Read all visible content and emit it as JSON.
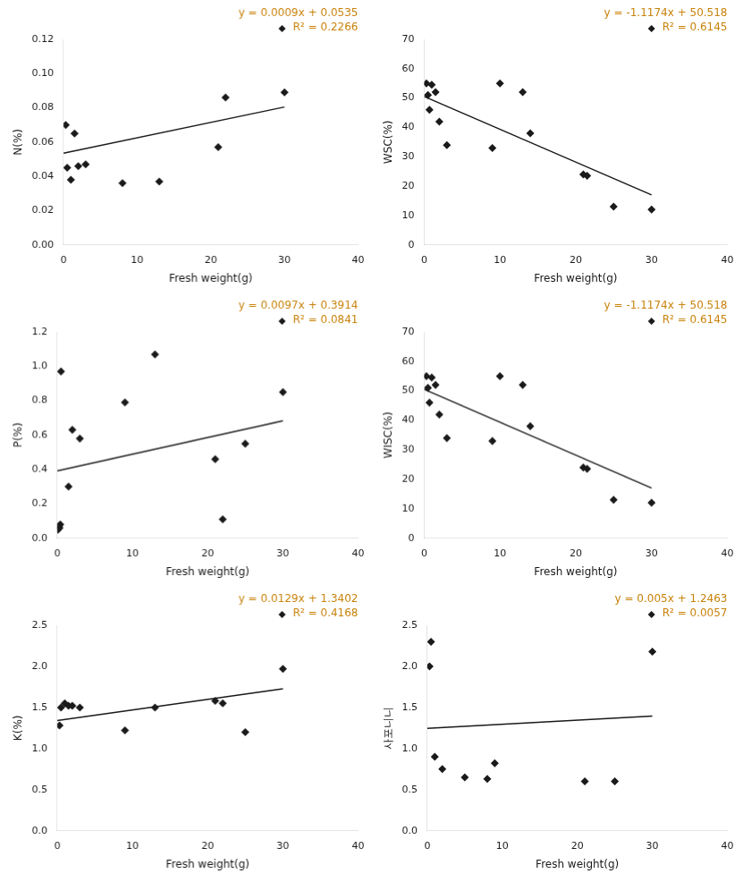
{
  "chart_data": [
    {
      "type": "scatter",
      "xlabel": "Fresh weight(g)",
      "ylabel": "N(%)",
      "xlim": [
        0,
        40
      ],
      "xticks": [
        0,
        10,
        20,
        30,
        40
      ],
      "ylim": [
        0,
        0.12
      ],
      "yticks": [
        {
          "value": 0,
          "label": "0.00"
        },
        {
          "value": 0.02,
          "label": "0.02"
        },
        {
          "value": 0.04,
          "label": "0.04"
        },
        {
          "value": 0.06,
          "label": "0.06"
        },
        {
          "value": 0.08,
          "label": "0.08"
        },
        {
          "value": 0.1,
          "label": "0.10"
        },
        {
          "value": 0.12,
          "label": "0.12"
        }
      ],
      "grid": false,
      "series": [
        {
          "type": "scatter",
          "color": "#1a1a1a",
          "marker": "diamond",
          "x": [
            0.3,
            0.5,
            1.0,
            1.5,
            2.0,
            3.0,
            8.0,
            13.0,
            21.0,
            22.0,
            30.0
          ],
          "values": [
            0.07,
            0.045,
            0.038,
            0.065,
            0.046,
            0.047,
            0.036,
            0.037,
            0.057,
            0.086,
            0.089
          ]
        },
        {
          "type": "line",
          "color": "#1a1a1a",
          "x": [
            0,
            30
          ],
          "values": [
            0.0535,
            0.0805
          ]
        }
      ],
      "annotations": [
        {
          "text": "y = 0.0009x + 0.0535",
          "color": "#C8820A"
        },
        {
          "text": "R² = 0.2266",
          "color": "#C8820A"
        }
      ]
    },
    {
      "type": "scatter",
      "xlabel": "Fresh weight(g)",
      "ylabel": "WSC(%)",
      "xlim": [
        0,
        40
      ],
      "xticks": [
        0,
        10,
        20,
        30,
        40
      ],
      "ylim": [
        0,
        70
      ],
      "yticks": [
        0,
        10,
        20,
        30,
        40,
        50,
        60,
        70
      ],
      "grid": false,
      "series": [
        {
          "type": "scatter",
          "color": "#1a1a1a",
          "marker": "diamond",
          "x": [
            0.3,
            0.5,
            0.7,
            1.0,
            1.5,
            2.0,
            3.0,
            9.0,
            10.0,
            13.0,
            14.0,
            21.0,
            21.5,
            25.0,
            30.0
          ],
          "values": [
            55.0,
            51.0,
            46.0,
            54.5,
            52.0,
            42.0,
            34.0,
            33.0,
            55.0,
            52.0,
            38.0,
            24.0,
            23.5,
            13.0,
            12.0
          ]
        },
        {
          "type": "line",
          "color": "#1a1a1a",
          "x": [
            0,
            30
          ],
          "values": [
            50.518,
            16.996
          ]
        }
      ],
      "annotations": [
        {
          "text": "y = -1.1174x + 50.518",
          "color": "#C8820A"
        },
        {
          "text": "R² = 0.6145",
          "color": "#C8820A"
        }
      ]
    },
    {
      "type": "scatter",
      "xlabel": "Fresh weight(g)",
      "ylabel": "P(%)",
      "xlim": [
        0,
        40
      ],
      "xticks": [
        0,
        10,
        20,
        30,
        40
      ],
      "ylim": [
        0,
        1.2
      ],
      "yticks": [
        {
          "value": 0,
          "label": "0.0"
        },
        {
          "value": 0.2,
          "label": "0.2"
        },
        {
          "value": 0.4,
          "label": "0.4"
        },
        {
          "value": 0.6,
          "label": "0.6"
        },
        {
          "value": 0.8,
          "label": "0.8"
        },
        {
          "value": 1.0,
          "label": "1.0"
        },
        {
          "value": 1.2,
          "label": "1.2"
        }
      ],
      "grid": false,
      "series": [
        {
          "type": "scatter",
          "color": "#1a1a1a",
          "marker": "diamond",
          "x": [
            0.1,
            0.2,
            0.3,
            0.4,
            0.5,
            1.5,
            2.0,
            3.0,
            9.0,
            13.0,
            21.0,
            22.0,
            25.0,
            30.0
          ],
          "values": [
            0.05,
            0.07,
            0.06,
            0.08,
            0.97,
            0.3,
            0.63,
            0.58,
            0.79,
            1.07,
            0.46,
            0.11,
            0.55,
            0.85
          ]
        },
        {
          "type": "line",
          "color": "#1a1a1a",
          "x": [
            0,
            30
          ],
          "values": [
            0.3914,
            0.6824
          ]
        }
      ],
      "annotations": [
        {
          "text": "y = 0.0097x + 0.3914",
          "color": "#C8820A"
        },
        {
          "text": "R² = 0.0841",
          "color": "#C8820A"
        }
      ]
    },
    {
      "type": "scatter",
      "xlabel": "Fresh weight(g)",
      "ylabel": "WISC(%)",
      "xlim": [
        0,
        40
      ],
      "xticks": [
        0,
        10,
        20,
        30,
        40
      ],
      "ylim": [
        0,
        70
      ],
      "yticks": [
        0,
        10,
        20,
        30,
        40,
        50,
        60,
        70
      ],
      "grid": false,
      "series": [
        {
          "type": "scatter",
          "color": "#1a1a1a",
          "marker": "diamond",
          "x": [
            0.3,
            0.5,
            0.7,
            1.0,
            1.5,
            2.0,
            3.0,
            9.0,
            10.0,
            13.0,
            14.0,
            21.0,
            21.5,
            25.0,
            30.0
          ],
          "values": [
            55.0,
            51.0,
            46.0,
            54.5,
            52.0,
            42.0,
            34.0,
            33.0,
            55.0,
            52.0,
            38.0,
            24.0,
            23.5,
            13.0,
            12.0
          ]
        },
        {
          "type": "line",
          "color": "#1a1a1a",
          "x": [
            0,
            30
          ],
          "values": [
            50.518,
            16.996
          ]
        }
      ],
      "annotations": [
        {
          "text": "y = -1.1174x + 50.518",
          "color": "#C8820A"
        },
        {
          "text": "R² = 0.6145",
          "color": "#C8820A"
        }
      ]
    },
    {
      "type": "scatter",
      "xlabel": "Fresh weight(g)",
      "ylabel": "K(%)",
      "xlim": [
        0,
        40
      ],
      "xticks": [
        0,
        10,
        20,
        30,
        40
      ],
      "ylim": [
        0,
        2.5
      ],
      "yticks": [
        {
          "value": 0,
          "label": "0.0"
        },
        {
          "value": 0.5,
          "label": "0.5"
        },
        {
          "value": 1.0,
          "label": "1.0"
        },
        {
          "value": 1.5,
          "label": "1.5"
        },
        {
          "value": 2.0,
          "label": "2.0"
        },
        {
          "value": 2.5,
          "label": "2.5"
        }
      ],
      "grid": false,
      "series": [
        {
          "type": "scatter",
          "color": "#1a1a1a",
          "marker": "diamond",
          "x": [
            0.3,
            0.5,
            1.0,
            1.5,
            2.0,
            3.0,
            9.0,
            13.0,
            21.0,
            22.0,
            25.0,
            30.0
          ],
          "values": [
            1.28,
            1.5,
            1.55,
            1.52,
            1.52,
            1.5,
            1.22,
            1.5,
            1.58,
            1.55,
            1.2,
            1.97
          ]
        },
        {
          "type": "line",
          "color": "#1a1a1a",
          "x": [
            0,
            30
          ],
          "values": [
            1.3402,
            1.7272
          ]
        }
      ],
      "annotations": [
        {
          "text": "y = 0.0129x + 1.3402",
          "color": "#C8820A"
        },
        {
          "text": "R² = 0.4168",
          "color": "#C8820A"
        }
      ]
    },
    {
      "type": "scatter",
      "xlabel": "Fresh weight(g)",
      "ylabel": "사포니니",
      "xlim": [
        0,
        40
      ],
      "xticks": [
        0,
        10,
        20,
        30,
        40
      ],
      "ylim": [
        0,
        2.5
      ],
      "yticks": [
        {
          "value": 0,
          "label": "0.0"
        },
        {
          "value": 0.5,
          "label": "0.5"
        },
        {
          "value": 1.0,
          "label": "1.0"
        },
        {
          "value": 1.5,
          "label": "1.5"
        },
        {
          "value": 2.0,
          "label": "2.0"
        },
        {
          "value": 2.5,
          "label": "2.5"
        }
      ],
      "grid": false,
      "series": [
        {
          "type": "scatter",
          "color": "#1a1a1a",
          "marker": "diamond",
          "x": [
            0.3,
            0.5,
            1.0,
            2.0,
            5.0,
            8.0,
            9.0,
            21.0,
            25.0,
            30.0
          ],
          "values": [
            2.0,
            2.3,
            0.9,
            0.75,
            0.65,
            0.63,
            0.82,
            0.6,
            0.6,
            2.18
          ]
        },
        {
          "type": "line",
          "color": "#1a1a1a",
          "x": [
            0,
            30
          ],
          "values": [
            1.2463,
            1.3963
          ]
        }
      ],
      "annotations": [
        {
          "text": "y = 0.005x + 1.2463",
          "color": "#C8820A"
        },
        {
          "text": "R² = 0.0057",
          "color": "#C8820A"
        }
      ]
    }
  ]
}
